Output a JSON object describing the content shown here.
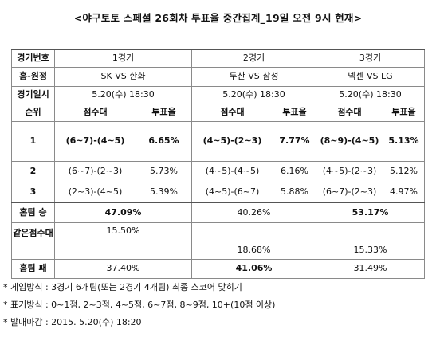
{
  "title": "<야구토토 스페셜 26회차 투표율 중간집계_19일 오전 9시 현재>",
  "table": {
    "header_label": "경기번호",
    "games": [
      "1경기",
      "2경기",
      "3경기"
    ],
    "home_away_label": "홈-원정",
    "matchups": [
      "SK VS 한화",
      "두산 VS 삼성",
      "넥센 VS LG"
    ],
    "datetime_label": "경기일시",
    "datetimes": [
      "5.20(수) 18:30",
      "5.20(수) 18:30",
      "5.20(수) 18:30"
    ],
    "rank_label": "순위",
    "score_band_label": "점수대",
    "vote_rate_label": "투표율",
    "ranks": [
      {
        "rank": "1",
        "cells": [
          {
            "score": "(6~7)-(4~5)",
            "rate": "6.65%"
          },
          {
            "score": "(4~5)-(2~3)",
            "rate": "7.77%"
          },
          {
            "score": "(8~9)-(4~5)",
            "rate": "5.13%"
          }
        ]
      },
      {
        "rank": "2",
        "cells": [
          {
            "score": "(6~7)-(2~3)",
            "rate": "5.73%"
          },
          {
            "score": "(4~5)-(4~5)",
            "rate": "6.16%"
          },
          {
            "score": "(4~5)-(2~3)",
            "rate": "5.12%"
          }
        ]
      },
      {
        "rank": "3",
        "cells": [
          {
            "score": "(2~3)-(4~5)",
            "rate": "5.39%"
          },
          {
            "score": "(4~5)-(6~7)",
            "rate": "5.88%"
          },
          {
            "score": "(6~7)-(2~3)",
            "rate": "4.97%"
          }
        ]
      }
    ],
    "home_win_label": "홈팀 승",
    "home_win": [
      "47.09%",
      "40.26%",
      "53.17%"
    ],
    "draw_label": "같은점수대",
    "draw": [
      "15.50%",
      "18.68%",
      "15.33%"
    ],
    "home_loss_label": "홈팀 패",
    "home_loss": [
      "37.40%",
      "41.06%",
      "31.49%"
    ]
  },
  "notes": [
    "* 게임방식 : 3경기 6개팀(또는 2경기 4개팀) 최종 스코어 맞히기",
    "* 표기방식 : 0~1점, 2~3점, 4~5점, 6~7점, 8~9점, 10+(10점 이상)",
    "* 발매마감 : 2015. 5.20(수) 18:20"
  ]
}
